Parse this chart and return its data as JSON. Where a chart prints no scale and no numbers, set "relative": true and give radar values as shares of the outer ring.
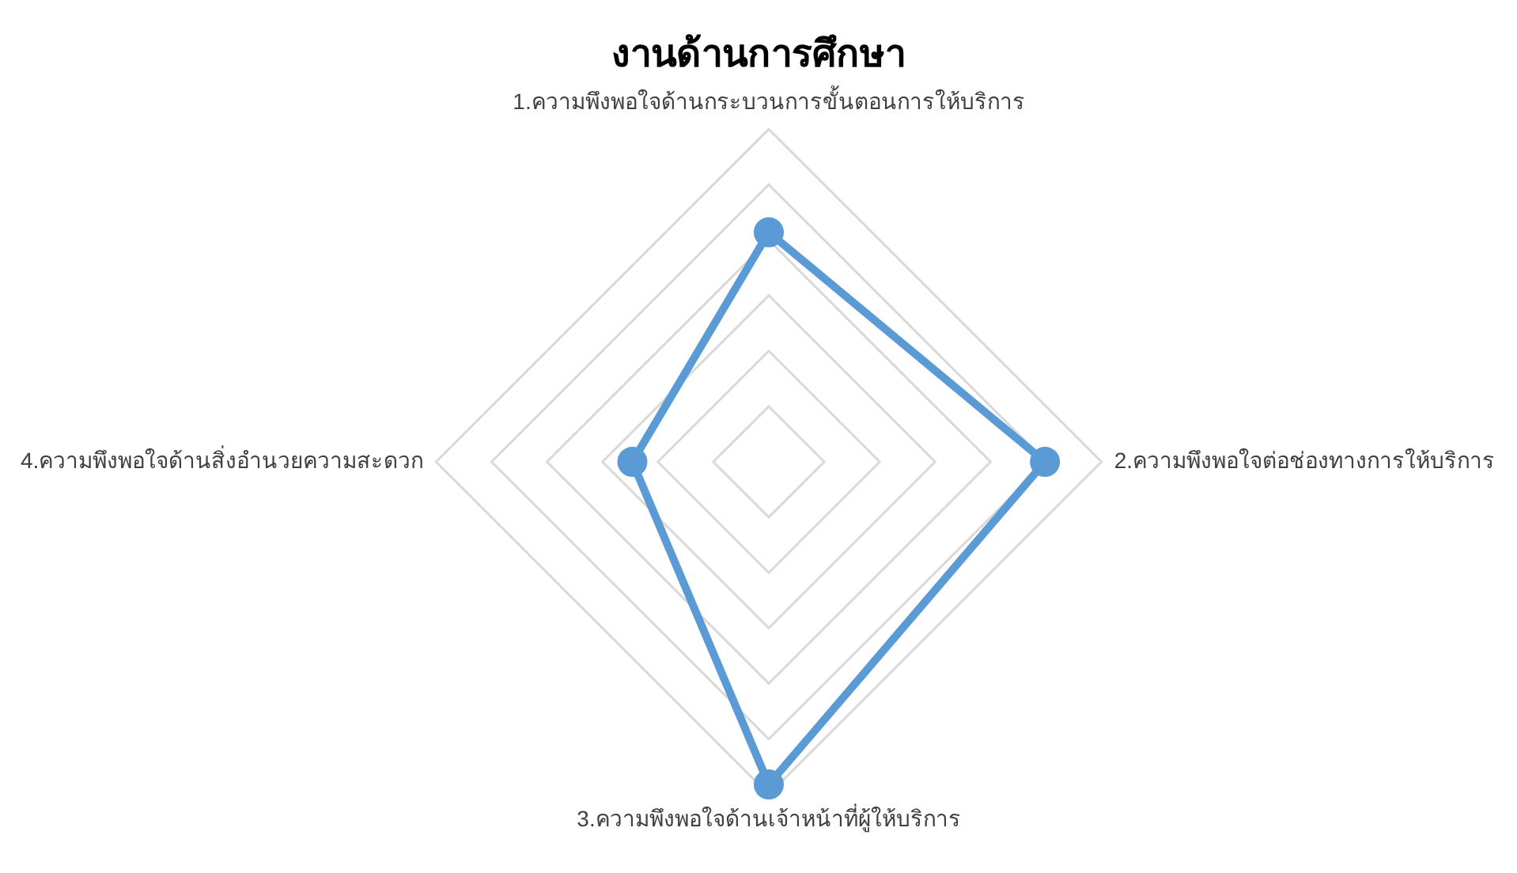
{
  "chart_data": {
    "type": "radar",
    "title": "งานด้านการศึกษา",
    "relative": true,
    "categories": [
      "1.ความพึงพอใจด้านกระบวนการขั้นตอนการให้บริการ",
      "2.ความพึงพอใจต่อช่องทางการให้บริการ",
      "3.ความพึงพอใจด้านเจ้าหน้าที่ผู้ให้บริการ",
      "4.ความพึงพอใจด้านสิ่งอำนวยความสะดวก"
    ],
    "series": [
      {
        "color": "#5b9bd5",
        "values": [
          0.69,
          0.83,
          0.97,
          0.41
        ]
      }
    ],
    "grid": true,
    "legend": false,
    "marker": "circle"
  }
}
